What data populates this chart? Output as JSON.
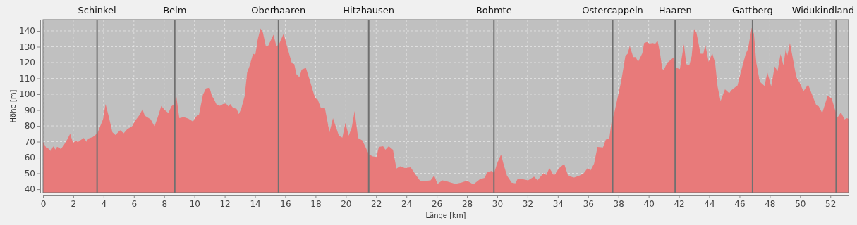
{
  "chart_data": {
    "type": "area",
    "xlabel": "Länge [km]",
    "ylabel": "Höhe [m]",
    "xlim": [
      0,
      53.2
    ],
    "ylim": [
      37.8,
      147.1
    ],
    "xticks": [
      0,
      2,
      4,
      6,
      8,
      10,
      12,
      14,
      16,
      18,
      20,
      22,
      24,
      26,
      28,
      30,
      32,
      34,
      36,
      38,
      40,
      42,
      44,
      46,
      48,
      50,
      52
    ],
    "yticks": [
      40,
      50,
      60,
      70,
      80,
      90,
      100,
      110,
      120,
      130,
      140
    ],
    "grid": true,
    "series": [
      {
        "color": "#e87a7a",
        "x": [
          0,
          0.2,
          0.36,
          0.51,
          0.67,
          0.82,
          0.93,
          1.18,
          1.37,
          1.6,
          1.79,
          1.99,
          2.14,
          2.3,
          2.69,
          2.87,
          3.0,
          3.3,
          3.59,
          3.96,
          4.13,
          4.35,
          4.58,
          4.78,
          5.09,
          5.33,
          5.56,
          5.87,
          6.1,
          6.34,
          6.57,
          6.72,
          7.11,
          7.36,
          7.58,
          7.81,
          8.04,
          8.28,
          8.48,
          8.66,
          8.79,
          9.0,
          9.29,
          9.6,
          9.91,
          10.06,
          10.3,
          10.56,
          10.76,
          11.0,
          11.15,
          11.3,
          11.46,
          11.69,
          11.89,
          12.08,
          12.24,
          12.36,
          12.55,
          12.78,
          12.93,
          13.09,
          13.32,
          13.48,
          13.63,
          13.87,
          14.02,
          14.18,
          14.36,
          14.52,
          14.72,
          14.88,
          15.22,
          15.42,
          15.62,
          15.89,
          16.12,
          16.43,
          16.59,
          16.74,
          16.93,
          17.08,
          17.36,
          17.6,
          17.83,
          17.98,
          18.14,
          18.34,
          18.61,
          18.92,
          19.15,
          19.54,
          19.77,
          19.97,
          20.19,
          20.39,
          20.58,
          20.81,
          21.09,
          21.53,
          21.79,
          22.02,
          22.18,
          22.46,
          22.61,
          22.83,
          23.11,
          23.34,
          23.58,
          23.89,
          24.28,
          24.59,
          24.9,
          25.29,
          25.6,
          25.83,
          26.06,
          26.37,
          26.68,
          27.23,
          27.62,
          28.0,
          28.42,
          28.86,
          29.17,
          29.32,
          29.63,
          29.79,
          29.98,
          30.25,
          30.41,
          30.64,
          30.95,
          31.19,
          31.34,
          31.65,
          32.04,
          32.43,
          32.66,
          33.05,
          33.24,
          33.44,
          33.75,
          34.06,
          34.42,
          34.68,
          35.07,
          35.38,
          35.69,
          35.97,
          36.16,
          36.39,
          36.62,
          36.98,
          37.17,
          37.4,
          37.56,
          37.71,
          37.94,
          38.18,
          38.46,
          38.61,
          38.75,
          38.98,
          39.14,
          39.3,
          39.58,
          39.7,
          39.89,
          40.04,
          40.27,
          40.43,
          40.59,
          40.74,
          40.9,
          41.0,
          41.21,
          41.44,
          41.67,
          41.83,
          42.06,
          42.19,
          42.33,
          42.48,
          42.68,
          42.84,
          43.0,
          43.15,
          43.43,
          43.61,
          43.74,
          43.96,
          44.2,
          44.39,
          44.55,
          44.75,
          45.04,
          45.32,
          45.48,
          45.87,
          46.02,
          46.41,
          46.56,
          46.8,
          46.95,
          47.11,
          47.34,
          47.65,
          47.84,
          48.09,
          48.32,
          48.51,
          48.71,
          48.9,
          49.05,
          49.16,
          49.33,
          49.52,
          49.75,
          49.98,
          50.22,
          50.53,
          50.76,
          51.07,
          51.23,
          51.46,
          51.82,
          52.08,
          52.31,
          52.47,
          52.7,
          52.93,
          53.09,
          53.2
        ],
        "values": [
          69.9,
          66.4,
          65.6,
          64.1,
          67,
          65,
          66.8,
          65.3,
          67.8,
          71.5,
          75,
          69,
          70.8,
          69.8,
          72.3,
          70,
          72,
          73,
          75.3,
          84.1,
          93.8,
          85.6,
          76,
          74.2,
          77.2,
          75.3,
          77.9,
          79.7,
          83.4,
          86.4,
          90.5,
          86.4,
          84.1,
          79.7,
          85.6,
          92.6,
          90,
          88.1,
          92.3,
          93.8,
          99.7,
          84.9,
          85.6,
          84.6,
          82.7,
          85.6,
          87.1,
          99.7,
          103.7,
          104.1,
          99,
          96.7,
          93.5,
          92.7,
          93.8,
          94.1,
          92.3,
          93.8,
          91.3,
          90.8,
          87.4,
          90.8,
          99,
          113.8,
          117.5,
          125.6,
          124.9,
          134.5,
          141.6,
          139,
          130.1,
          130.8,
          137.5,
          130.1,
          132.3,
          138.2,
          130.1,
          119.7,
          119,
          112.6,
          110.8,
          115.6,
          116.7,
          109.3,
          101.9,
          97.5,
          96.7,
          91.6,
          91.6,
          76,
          84.9,
          73.8,
          72.6,
          81.9,
          73.8,
          79,
          89.3,
          72.3,
          70.8,
          61.9,
          60.7,
          60.4,
          66.7,
          67.1,
          64.9,
          67.1,
          64.9,
          53,
          54.5,
          53.3,
          53.8,
          49.3,
          45.3,
          45.2,
          45.6,
          48.6,
          43.4,
          45.6,
          44.9,
          43.4,
          44.1,
          45.3,
          43,
          46.4,
          47.1,
          50.5,
          51.6,
          50.1,
          56,
          61.9,
          56,
          48.6,
          44.1,
          43.7,
          46.4,
          46.4,
          45.6,
          47.9,
          45.6,
          50.1,
          48.9,
          53.3,
          48.6,
          53,
          56,
          48.3,
          47.4,
          48.3,
          49.8,
          53.3,
          51.9,
          56,
          66.7,
          66.4,
          71.3,
          72,
          83.4,
          87.4,
          97.5,
          107.9,
          124.1,
          125.6,
          130.4,
          123.4,
          123.4,
          120.4,
          125.9,
          132.3,
          133,
          132,
          132.3,
          131.9,
          133.8,
          126.4,
          116,
          115.3,
          119.7,
          121.5,
          123.4,
          116.7,
          115.9,
          123.4,
          131.6,
          119,
          118.2,
          124.1,
          141.2,
          139,
          125.6,
          125.6,
          131.3,
          120.4,
          125.9,
          119.7,
          104.9,
          95.7,
          103.1,
          100.7,
          102.7,
          105.6,
          111.6,
          125.6,
          128.6,
          141.9,
          138.2,
          119.7,
          107.9,
          105.2,
          113.8,
          104.9,
          117.5,
          114.5,
          125.3,
          118.2,
          128.6,
          124.6,
          132.3,
          122.7,
          110.8,
          107.1,
          101.9,
          106.1,
          100.4,
          93,
          92.3,
          88.1,
          99,
          97.5,
          90.1,
          85.3,
          88.6,
          84.1,
          84.9,
          84.4
        ]
      }
    ],
    "ref_lines": [
      {
        "axis": "x",
        "value": 3.57,
        "label": "Schinkel",
        "color": "#707070"
      },
      {
        "axis": "x",
        "value": 8.7,
        "label": "Belm",
        "color": "#707070"
      },
      {
        "axis": "x",
        "value": 15.55,
        "label": "Oberhaaren",
        "color": "#707070"
      },
      {
        "axis": "x",
        "value": 21.51,
        "label": "Hitzhausen",
        "color": "#707070"
      },
      {
        "axis": "x",
        "value": 29.78,
        "label": "Bohmte",
        "color": "#707070"
      },
      {
        "axis": "x",
        "value": 37.62,
        "label": "Ostercappeln",
        "color": "#707070"
      },
      {
        "axis": "x",
        "value": 41.75,
        "label": "Haaren",
        "color": "#707070"
      },
      {
        "axis": "x",
        "value": 46.86,
        "label": "Gattberg",
        "color": "#707070"
      },
      {
        "axis": "x",
        "value": 52.38,
        "label": "Widukindland",
        "color": "#707070"
      }
    ]
  }
}
